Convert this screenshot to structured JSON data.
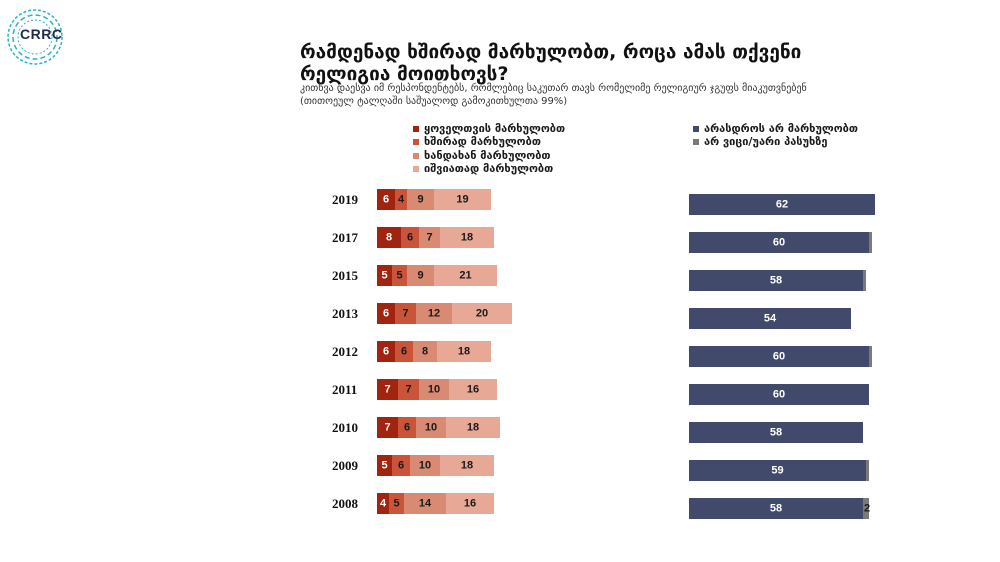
{
  "logo": {
    "text": "CRRC"
  },
  "title": "რამდენად ხშირად მარხულობთ, როცა ამას თქვენი რელიგია მოითხოვს?",
  "subtitle": "კითხვა დაესვა იმ რესპონდენტებს, რომლებიც საკუთარ თავს რომელიმე რელიგიურ ჯგუფს მიაკუთვნებენ (თითოეულ ტალღაში საშუალოდ გამოკითხულთა 99%)",
  "colors": {
    "always": "#a0240f",
    "often": "#c9543a",
    "sometimes": "#d98a72",
    "rarely": "#e8a896",
    "never": "#414a6b",
    "dk": "#7a7a7a"
  },
  "chart_data": {
    "type": "bar",
    "orientation": "horizontal-stacked",
    "categories": [
      "2019",
      "2017",
      "2015",
      "2013",
      "2012",
      "2011",
      "2010",
      "2009",
      "2008"
    ],
    "series": [
      {
        "name": "ყოველთვის მარხულობთ",
        "key": "always",
        "values": [
          6,
          8,
          5,
          6,
          6,
          7,
          7,
          5,
          4
        ]
      },
      {
        "name": "ხშირად მარხულობთ",
        "key": "often",
        "values": [
          4,
          6,
          5,
          7,
          6,
          7,
          6,
          6,
          5
        ]
      },
      {
        "name": "ხანდახან მარხულობთ",
        "key": "sometimes",
        "values": [
          9,
          7,
          9,
          12,
          8,
          10,
          10,
          10,
          14
        ]
      },
      {
        "name": "იშვიათად მარხულობთ",
        "key": "rarely",
        "values": [
          19,
          18,
          21,
          20,
          18,
          16,
          18,
          18,
          16
        ]
      },
      {
        "name": "არასდროს არ მარხულობთ",
        "key": "never",
        "values": [
          62,
          60,
          58,
          54,
          60,
          60,
          58,
          59,
          58
        ]
      },
      {
        "name": "არ ვიცი/უარი პასუხზე",
        "key": "dk",
        "values": [
          0,
          1,
          1,
          0,
          1,
          0,
          0,
          1,
          2
        ]
      }
    ],
    "dk_labels": [
      "",
      "",
      "",
      "",
      "",
      "",
      "",
      "",
      "2"
    ],
    "legend_position": "top",
    "grid": false
  }
}
